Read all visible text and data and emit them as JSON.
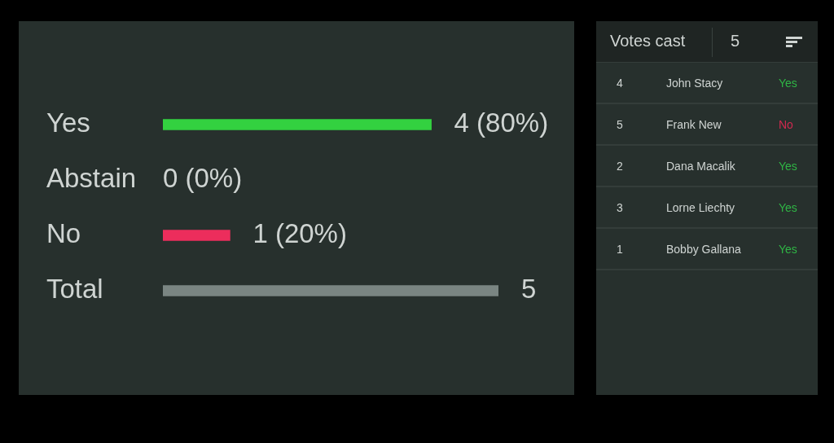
{
  "chart_data": [
    {
      "type": "bar",
      "orientation": "horizontal",
      "categories": [
        "Yes",
        "Abstain",
        "No",
        "Total"
      ],
      "values": [
        4,
        0,
        1,
        5
      ],
      "colors": [
        "#33d140",
        null,
        "#ec2d5c",
        "#7a8582"
      ],
      "value_labels": [
        "4 (80%)",
        "0 (0%)",
        "1 (20%)",
        "5"
      ],
      "xlim": [
        0,
        5
      ],
      "tick_labels": "y"
    },
    {
      "type": "other",
      "title": "Votes cast",
      "annotations": [
        "5",
        "4",
        "John Stacy",
        "Yes",
        "5",
        "Frank New",
        "No",
        "2",
        "Dana Macalik",
        "Yes",
        "3",
        "Lorne Liechty",
        "Yes",
        "1",
        "Bobby Gallana",
        "Yes"
      ],
      "colors": [
        "#2fb545",
        "#d0294f",
        "#2fb545",
        "#2fb545",
        "#2fb545"
      ]
    }
  ]
}
